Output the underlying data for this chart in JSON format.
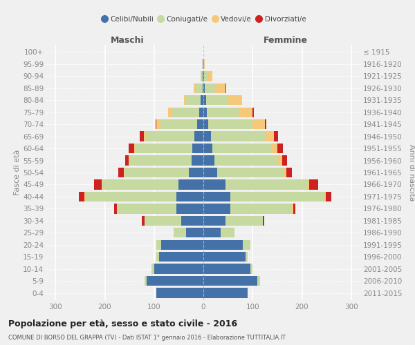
{
  "age_groups": [
    "0-4",
    "5-9",
    "10-14",
    "15-19",
    "20-24",
    "25-29",
    "30-34",
    "35-39",
    "40-44",
    "45-49",
    "50-54",
    "55-59",
    "60-64",
    "65-69",
    "70-74",
    "75-79",
    "80-84",
    "85-89",
    "90-94",
    "95-99",
    "100+"
  ],
  "birth_years": [
    "2011-2015",
    "2006-2010",
    "2001-2005",
    "1996-2000",
    "1991-1995",
    "1986-1990",
    "1981-1985",
    "1976-1980",
    "1971-1975",
    "1966-1970",
    "1961-1965",
    "1956-1960",
    "1951-1955",
    "1946-1950",
    "1941-1945",
    "1936-1940",
    "1931-1935",
    "1926-1930",
    "1921-1925",
    "1916-1920",
    "≤ 1915"
  ],
  "male_celibi": [
    95,
    115,
    100,
    90,
    85,
    35,
    45,
    55,
    55,
    50,
    30,
    24,
    22,
    18,
    12,
    8,
    5,
    2,
    1,
    1,
    0
  ],
  "male_coniugati": [
    0,
    5,
    5,
    5,
    10,
    25,
    75,
    120,
    185,
    155,
    130,
    125,
    115,
    100,
    75,
    55,
    30,
    15,
    4,
    1,
    0
  ],
  "male_vedovi": [
    0,
    0,
    0,
    0,
    0,
    0,
    0,
    1,
    2,
    2,
    2,
    2,
    3,
    3,
    8,
    8,
    5,
    3,
    1,
    0,
    0
  ],
  "male_divorziati": [
    0,
    0,
    0,
    0,
    0,
    0,
    5,
    5,
    10,
    15,
    10,
    8,
    12,
    8,
    2,
    1,
    0,
    0,
    0,
    0,
    0
  ],
  "female_nubili": [
    90,
    110,
    95,
    85,
    80,
    35,
    45,
    55,
    55,
    45,
    28,
    22,
    18,
    15,
    10,
    7,
    5,
    3,
    2,
    0,
    0
  ],
  "female_coniugate": [
    0,
    5,
    5,
    5,
    15,
    28,
    75,
    125,
    190,
    165,
    135,
    130,
    120,
    110,
    90,
    65,
    45,
    22,
    8,
    1,
    0
  ],
  "female_vedove": [
    0,
    0,
    0,
    0,
    0,
    0,
    1,
    2,
    3,
    5,
    5,
    8,
    12,
    18,
    25,
    28,
    28,
    20,
    8,
    2,
    0
  ],
  "female_divorziate": [
    0,
    0,
    0,
    0,
    0,
    0,
    3,
    5,
    12,
    18,
    12,
    10,
    12,
    8,
    3,
    2,
    1,
    1,
    0,
    0,
    0
  ],
  "colors_celibi": "#4472a8",
  "colors_coniugati": "#c5d9a0",
  "colors_vedovi": "#f5c87a",
  "colors_divorziati": "#cc2222",
  "xlim": 320,
  "xticks": [
    -300,
    -200,
    -100,
    0,
    100,
    200,
    300
  ],
  "title": "Popolazione per età, sesso e stato civile - 2016",
  "subtitle": "COMUNE DI BORSO DEL GRAPPA (TV) - Dati ISTAT 1° gennaio 2016 - Elaborazione TUTTITALIA.IT",
  "ylabel_left": "Fasce di età",
  "ylabel_right": "Anni di nascita",
  "label_maschi": "Maschi",
  "label_femmine": "Femmine",
  "legend_labels": [
    "Celibi/Nubili",
    "Coniugati/e",
    "Vedovi/e",
    "Divorziati/e"
  ],
  "bg_color": "#f0f0f0",
  "grid_color": "#ffffff",
  "tick_color": "#888888",
  "bar_height": 0.82
}
